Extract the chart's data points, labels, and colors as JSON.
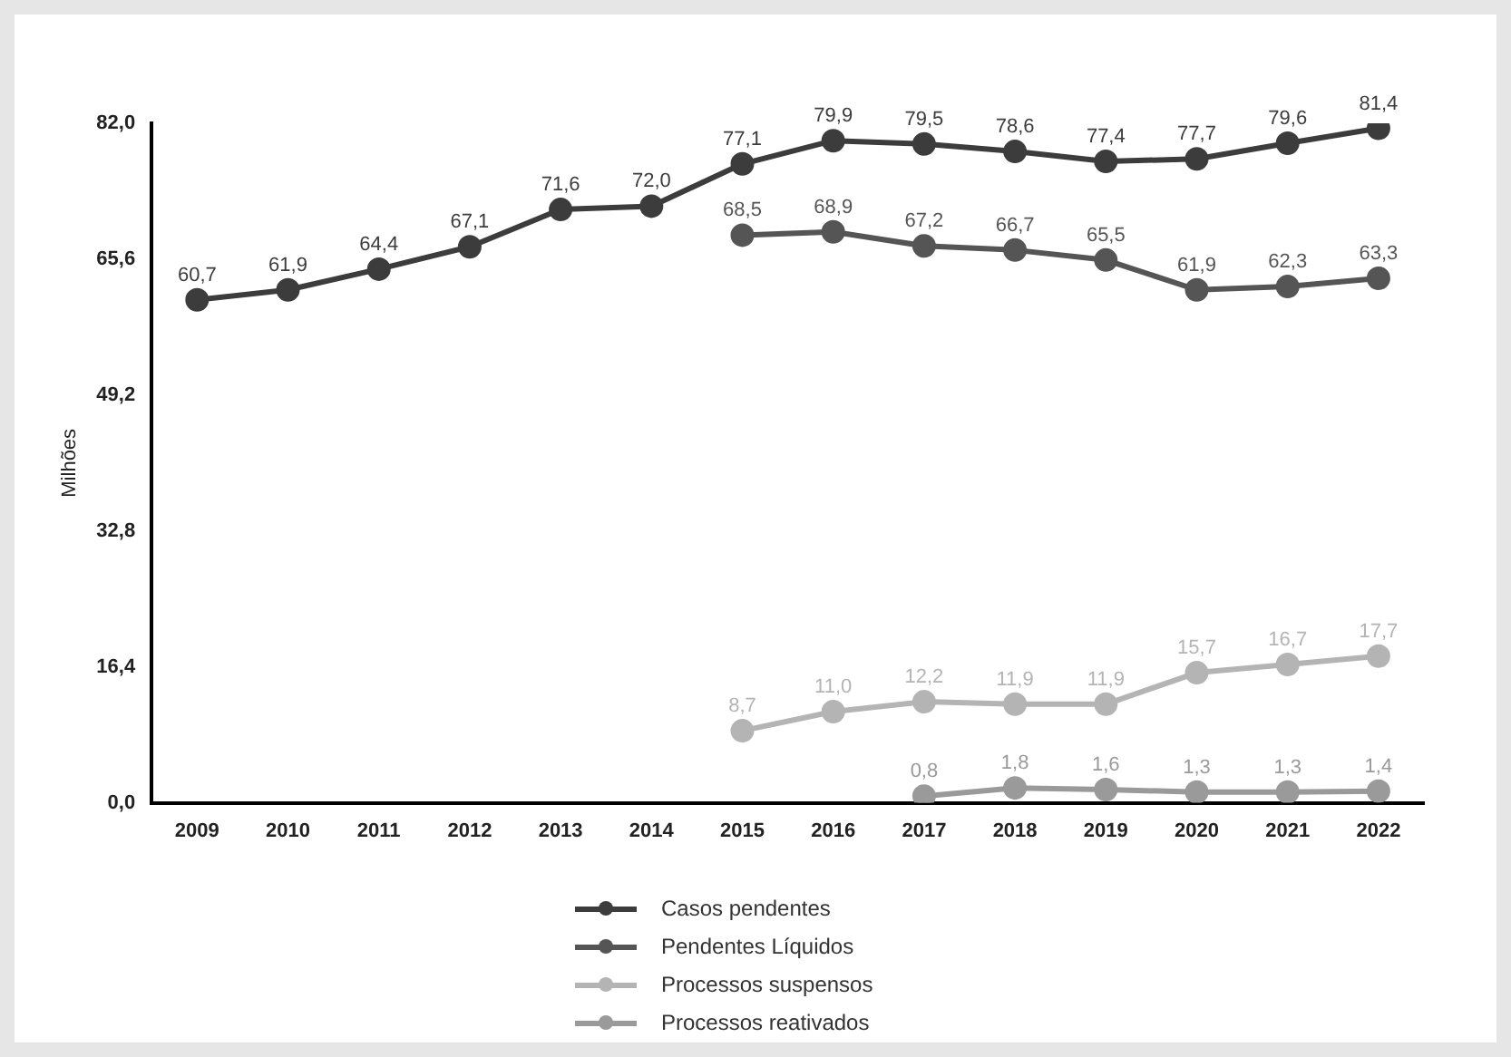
{
  "chart_data": {
    "type": "line",
    "ylabel": "Milhões",
    "categories": [
      "2009",
      "2010",
      "2011",
      "2012",
      "2013",
      "2014",
      "2015",
      "2016",
      "2017",
      "2018",
      "2019",
      "2020",
      "2021",
      "2022"
    ],
    "ylim": [
      0,
      82
    ],
    "yticks": [
      {
        "value": 0,
        "label": "0,0"
      },
      {
        "value": 16.4,
        "label": "16,4"
      },
      {
        "value": 32.8,
        "label": "32,8"
      },
      {
        "value": 49.2,
        "label": "49,2"
      },
      {
        "value": 65.6,
        "label": "65,6"
      },
      {
        "value": 82,
        "label": "82,0"
      }
    ],
    "grid": false,
    "legend": "bottom",
    "marker": "circle",
    "line_style": "solid",
    "series": [
      {
        "name": "Casos pendentes",
        "color": "#3c3c3c",
        "values": [
          60.7,
          61.9,
          64.4,
          67.1,
          71.6,
          72.0,
          77.1,
          79.9,
          79.5,
          78.6,
          77.4,
          77.7,
          79.6,
          81.4
        ],
        "value_labels": [
          "60,7",
          "61,9",
          "64,4",
          "67,1",
          "71,6",
          "72,0",
          "77,1",
          "79,9",
          "79,5",
          "78,6",
          "77,4",
          "77,7",
          "79,6",
          "81,4"
        ]
      },
      {
        "name": "Pendentes Líquidos",
        "color": "#555555",
        "values": [
          null,
          null,
          null,
          null,
          null,
          null,
          68.5,
          68.9,
          67.2,
          66.7,
          65.5,
          61.9,
          62.3,
          63.3
        ],
        "value_labels": [
          null,
          null,
          null,
          null,
          null,
          null,
          "68,5",
          "68,9",
          "67,2",
          "66,7",
          "65,5",
          "61,9",
          "62,3",
          "63,3"
        ]
      },
      {
        "name": "Processos suspensos",
        "color": "#b4b4b4",
        "values": [
          null,
          null,
          null,
          null,
          null,
          null,
          8.7,
          11.0,
          12.2,
          11.9,
          11.9,
          15.7,
          16.7,
          17.7
        ],
        "value_labels": [
          null,
          null,
          null,
          null,
          null,
          null,
          "8,7",
          "11,0",
          "12,2",
          "11,9",
          "11,9",
          "15,7",
          "16,7",
          "17,7"
        ]
      },
      {
        "name": "Processos reativados",
        "color": "#9a9a9a",
        "values": [
          null,
          null,
          null,
          null,
          null,
          null,
          null,
          null,
          0.8,
          1.8,
          1.6,
          1.3,
          1.3,
          1.4
        ],
        "value_labels": [
          null,
          null,
          null,
          null,
          null,
          null,
          null,
          null,
          "0,8",
          "1,8",
          "1,6",
          "1,3",
          "1,3",
          "1,4"
        ]
      }
    ]
  }
}
